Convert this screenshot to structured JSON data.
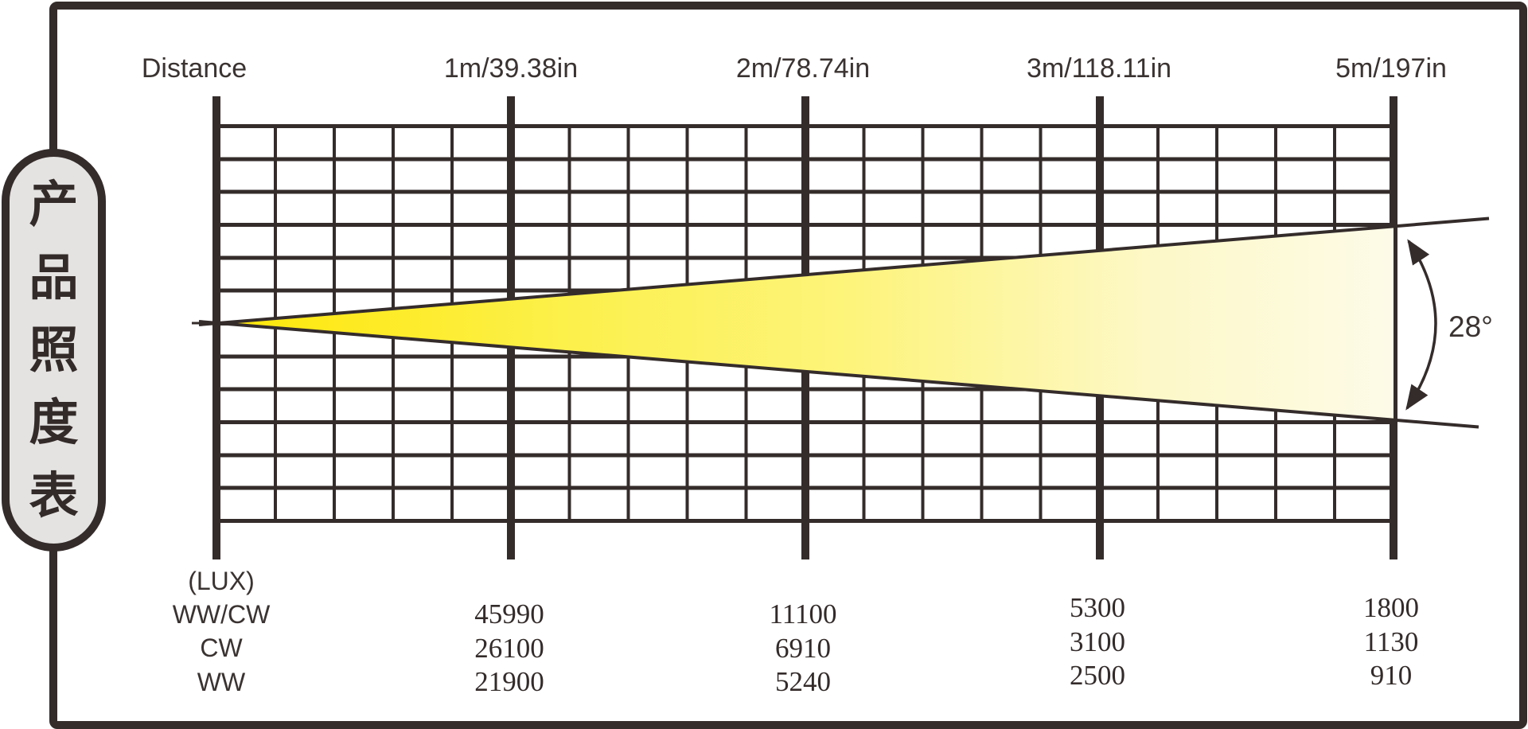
{
  "colors": {
    "ink": "#342c2b",
    "beam_start": "#ffe604",
    "beam_mid": "#fcf155",
    "beam_end": "#fdfbe8",
    "pill_bg": "#e4e3e2"
  },
  "chart_data": {
    "type": "table",
    "title": "产品照度表",
    "distance_label": "Distance",
    "lux_label": "(LUX)",
    "beam_angle_label": "28°",
    "beam_angle_degrees": 28,
    "row_labels": [
      "WW/CW",
      "CW",
      "WW"
    ],
    "columns": [
      {
        "label": "1m/39.38in",
        "values": [
          45990,
          26100,
          21900
        ]
      },
      {
        "label": "2m/78.74in",
        "values": [
          11100,
          6910,
          5240
        ]
      },
      {
        "label": "3m/118.11in",
        "values": [
          5300,
          3100,
          2500
        ]
      },
      {
        "label": "5m/197in",
        "values": [
          1800,
          1130,
          910
        ]
      }
    ],
    "layout_hints": {
      "grid": "12 rows x 20 columns, 5 sub-columns per labeled distance",
      "legend_position": "none",
      "beam": "yellow gradient cone from Distance axis apex to 5m line"
    }
  }
}
